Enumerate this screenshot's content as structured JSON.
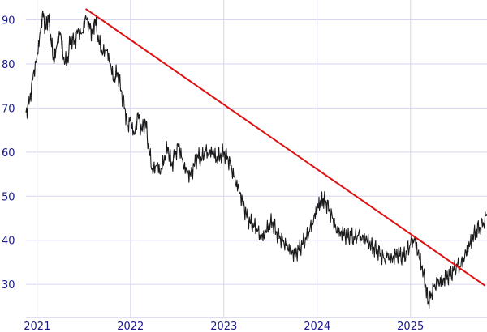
{
  "chart_data": {
    "type": "line",
    "title": "",
    "xlabel": "",
    "ylabel": "",
    "xlim": [
      2020.88,
      2025.82
    ],
    "ylim": [
      22.5,
      94.5
    ],
    "grid": true,
    "x_ticks": [
      {
        "value": 2021,
        "label": "2021"
      },
      {
        "value": 2022,
        "label": "2022"
      },
      {
        "value": 2023,
        "label": "2023"
      },
      {
        "value": 2024,
        "label": "2024"
      },
      {
        "value": 2025,
        "label": "2025"
      }
    ],
    "y_ticks": [
      {
        "value": 30,
        "label": "30"
      },
      {
        "value": 40,
        "label": "40"
      },
      {
        "value": 50,
        "label": "50"
      },
      {
        "value": 60,
        "label": "60"
      },
      {
        "value": 70,
        "label": "70"
      },
      {
        "value": 80,
        "label": "80"
      },
      {
        "value": 90,
        "label": "90"
      }
    ],
    "series": [
      {
        "color": "#1a1a1a",
        "points": [
          [
            2020.88,
            69
          ],
          [
            2020.92,
            72
          ],
          [
            2020.96,
            78
          ],
          [
            2021.0,
            82
          ],
          [
            2021.03,
            87
          ],
          [
            2021.06,
            92
          ],
          [
            2021.09,
            88
          ],
          [
            2021.12,
            91
          ],
          [
            2021.15,
            85
          ],
          [
            2021.18,
            80
          ],
          [
            2021.21,
            84
          ],
          [
            2021.25,
            87
          ],
          [
            2021.28,
            81
          ],
          [
            2021.32,
            80
          ],
          [
            2021.36,
            86
          ],
          [
            2021.4,
            85
          ],
          [
            2021.44,
            88
          ],
          [
            2021.48,
            87
          ],
          [
            2021.52,
            91
          ],
          [
            2021.56,
            89
          ],
          [
            2021.59,
            87
          ],
          [
            2021.62,
            90
          ],
          [
            2021.66,
            85
          ],
          [
            2021.7,
            82
          ],
          [
            2021.74,
            83
          ],
          [
            2021.78,
            80
          ],
          [
            2021.82,
            76
          ],
          [
            2021.86,
            78
          ],
          [
            2021.9,
            74
          ],
          [
            2021.94,
            70
          ],
          [
            2021.97,
            66
          ],
          [
            2022.0,
            68
          ],
          [
            2022.04,
            64
          ],
          [
            2022.08,
            69
          ],
          [
            2022.12,
            65
          ],
          [
            2022.16,
            67
          ],
          [
            2022.2,
            60
          ],
          [
            2022.24,
            55
          ],
          [
            2022.28,
            57
          ],
          [
            2022.32,
            55
          ],
          [
            2022.36,
            58
          ],
          [
            2022.4,
            61
          ],
          [
            2022.44,
            57
          ],
          [
            2022.48,
            60
          ],
          [
            2022.52,
            62
          ],
          [
            2022.56,
            58
          ],
          [
            2022.6,
            56
          ],
          [
            2022.64,
            55
          ],
          [
            2022.68,
            57
          ],
          [
            2022.72,
            59
          ],
          [
            2022.76,
            58
          ],
          [
            2022.8,
            60
          ],
          [
            2022.84,
            59
          ],
          [
            2022.88,
            60
          ],
          [
            2022.92,
            58
          ],
          [
            2022.96,
            59
          ],
          [
            2023.0,
            60
          ],
          [
            2023.04,
            59
          ],
          [
            2023.08,
            57
          ],
          [
            2023.12,
            54
          ],
          [
            2023.16,
            52
          ],
          [
            2023.2,
            49
          ],
          [
            2023.24,
            46
          ],
          [
            2023.28,
            44
          ],
          [
            2023.32,
            43
          ],
          [
            2023.36,
            42
          ],
          [
            2023.4,
            40
          ],
          [
            2023.44,
            41
          ],
          [
            2023.48,
            43
          ],
          [
            2023.52,
            44
          ],
          [
            2023.56,
            42
          ],
          [
            2023.6,
            41
          ],
          [
            2023.64,
            40
          ],
          [
            2023.68,
            39
          ],
          [
            2023.72,
            38
          ],
          [
            2023.76,
            37
          ],
          [
            2023.8,
            38
          ],
          [
            2023.84,
            39
          ],
          [
            2023.88,
            40
          ],
          [
            2023.92,
            42
          ],
          [
            2023.96,
            44
          ],
          [
            2024.0,
            47
          ],
          [
            2024.03,
            48
          ],
          [
            2024.06,
            49
          ],
          [
            2024.09,
            49
          ],
          [
            2024.13,
            47
          ],
          [
            2024.17,
            45
          ],
          [
            2024.2,
            43
          ],
          [
            2024.24,
            42
          ],
          [
            2024.28,
            42
          ],
          [
            2024.32,
            41
          ],
          [
            2024.36,
            41
          ],
          [
            2024.4,
            40
          ],
          [
            2024.44,
            41
          ],
          [
            2024.48,
            40
          ],
          [
            2024.52,
            40
          ],
          [
            2024.56,
            39
          ],
          [
            2024.6,
            38
          ],
          [
            2024.64,
            38
          ],
          [
            2024.68,
            37
          ],
          [
            2024.72,
            36
          ],
          [
            2024.76,
            37
          ],
          [
            2024.8,
            36
          ],
          [
            2024.84,
            37
          ],
          [
            2024.88,
            37
          ],
          [
            2024.92,
            36
          ],
          [
            2024.96,
            37
          ],
          [
            2025.0,
            39
          ],
          [
            2025.04,
            40
          ],
          [
            2025.08,
            37
          ],
          [
            2025.12,
            34
          ],
          [
            2025.16,
            30
          ],
          [
            2025.19,
            26
          ],
          [
            2025.22,
            28
          ],
          [
            2025.26,
            30
          ],
          [
            2025.3,
            31
          ],
          [
            2025.34,
            31
          ],
          [
            2025.38,
            32
          ],
          [
            2025.42,
            32
          ],
          [
            2025.46,
            33
          ],
          [
            2025.5,
            34
          ],
          [
            2025.54,
            34
          ],
          [
            2025.58,
            36
          ],
          [
            2025.62,
            38
          ],
          [
            2025.66,
            40
          ],
          [
            2025.7,
            42
          ],
          [
            2025.74,
            43
          ],
          [
            2025.78,
            44
          ],
          [
            2025.82,
            46
          ]
        ]
      }
    ],
    "annotations": [
      {
        "type": "trendline",
        "color": "#dd1111",
        "from": [
          2021.52,
          92.5
        ],
        "to": [
          2025.8,
          29.7
        ]
      }
    ]
  }
}
